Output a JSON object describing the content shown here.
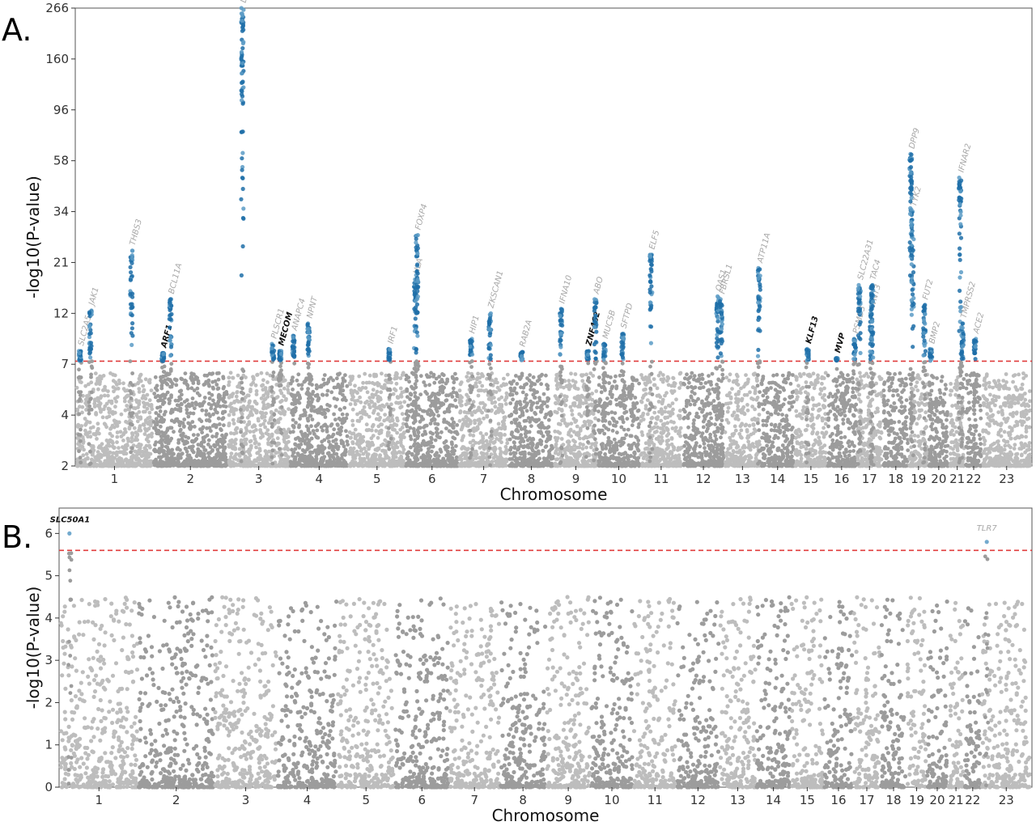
{
  "figure": {
    "panels": [
      "A.",
      "B."
    ]
  },
  "colors": {
    "chrom_odd": "#bdbdbd",
    "chrom_even": "#9c9c9c",
    "hit": "#1f6fa8",
    "hit_light": "#5b9bc6",
    "threshold": "#e03c3c",
    "known_label": "#a8a8a8",
    "novel_label": "#111111"
  },
  "chart_data": [
    {
      "type": "scatter",
      "subtype": "manhattan",
      "panel": "A.",
      "xlabel": "Chromosome",
      "ylabel": "-log10(P-value)",
      "scale": "compressed (nonlinear) -log10 axis",
      "ylim": [
        2,
        266
      ],
      "yticks": [
        2,
        4,
        7,
        12,
        21,
        34,
        58,
        96,
        160,
        266
      ],
      "threshold": 7.3,
      "chromosomes": [
        "1",
        "2",
        "3",
        "4",
        "5",
        "6",
        "7",
        "8",
        "9",
        "10",
        "11",
        "12",
        "13",
        "14",
        "15",
        "16",
        "17",
        "18",
        "19",
        "20",
        "21",
        "22",
        "23"
      ],
      "chrom_sizes": [
        248,
        242,
        198,
        190,
        181,
        171,
        159,
        145,
        138,
        134,
        135,
        133,
        114,
        107,
        102,
        90,
        83,
        80,
        59,
        64,
        47,
        51,
        156
      ],
      "background_max": 6.5,
      "grid": false,
      "peaks": [
        {
          "chr": 1,
          "pos": 10,
          "p": 8.3,
          "gene": "SLC2A5",
          "novel": false
        },
        {
          "chr": 1,
          "pos": 45,
          "p": 12.5,
          "gene": "JAK1",
          "novel": false
        },
        {
          "chr": 1,
          "pos": 180,
          "p": 24,
          "gene": "THBS3",
          "novel": false
        },
        {
          "chr": 2,
          "pos": 30,
          "p": 8.1,
          "gene": "ARF1",
          "novel": true
        },
        {
          "chr": 2,
          "pos": 55,
          "p": 14.5,
          "gene": "BCL11A",
          "novel": false
        },
        {
          "chr": 3,
          "pos": 45,
          "p": 266,
          "gene": "LZTFL1",
          "novel": false
        },
        {
          "chr": 3,
          "pos": 146,
          "p": 9.0,
          "gene": "PLSCR1",
          "novel": false
        },
        {
          "chr": 3,
          "pos": 170,
          "p": 8.3,
          "gene": "MECOM",
          "novel": true
        },
        {
          "chr": 4,
          "pos": 10,
          "p": 9.8,
          "gene": "ANAPC4",
          "novel": false
        },
        {
          "chr": 4,
          "pos": 60,
          "p": 11,
          "gene": "NPNT",
          "novel": false
        },
        {
          "chr": 5,
          "pos": 132,
          "p": 8.5,
          "gene": "IRF1",
          "novel": false
        },
        {
          "chr": 6,
          "pos": 30,
          "p": 18,
          "gene": "HLA",
          "novel": false
        },
        {
          "chr": 6,
          "pos": 36,
          "p": 28,
          "gene": "FOXP4",
          "novel": false
        },
        {
          "chr": 7,
          "pos": 38,
          "p": 9.5,
          "gene": "HIP1",
          "novel": false
        },
        {
          "chr": 7,
          "pos": 100,
          "p": 12,
          "gene": "ZKSCAN1",
          "novel": false
        },
        {
          "chr": 8,
          "pos": 40,
          "p": 8.2,
          "gene": "RAB2A",
          "novel": false
        },
        {
          "chr": 9,
          "pos": 20,
          "p": 12.8,
          "gene": "IFNA10",
          "novel": false
        },
        {
          "chr": 9,
          "pos": 108,
          "p": 8.3,
          "gene": "ZNF462",
          "novel": true
        },
        {
          "chr": 9,
          "pos": 133,
          "p": 14.5,
          "gene": "ABO",
          "novel": false
        },
        {
          "chr": 10,
          "pos": 80,
          "p": 10,
          "gene": "SFTPD",
          "novel": false
        },
        {
          "chr": 10,
          "pos": 20,
          "p": 9.0,
          "gene": "MUC5B",
          "novel": false
        },
        {
          "chr": 11,
          "pos": 34,
          "p": 23,
          "gene": "ELF5",
          "novel": false
        },
        {
          "chr": 12,
          "pos": 113,
          "p": 15,
          "gene": "OAS1",
          "novel": false
        },
        {
          "chr": 12,
          "pos": 125,
          "p": 14.5,
          "gene": "FBRSL1",
          "novel": false
        },
        {
          "chr": 13,
          "pos": 112,
          "p": 20,
          "gene": "ATP11A",
          "novel": false
        },
        {
          "chr": 15,
          "pos": 40,
          "p": 8.5,
          "gene": "KLF13",
          "novel": true
        },
        {
          "chr": 16,
          "pos": 29,
          "p": 7.6,
          "gene": "MVP",
          "novel": true
        },
        {
          "chr": 16,
          "pos": 88,
          "p": 9.5,
          "gene": "PSMD3",
          "novel": false
        },
        {
          "chr": 17,
          "pos": 47,
          "p": 12,
          "gene": "WNT3",
          "novel": false
        },
        {
          "chr": 17,
          "pos": 50,
          "p": 17,
          "gene": "TAC4",
          "novel": false
        },
        {
          "chr": 17,
          "pos": 8,
          "p": 17,
          "gene": "SLC22A31",
          "novel": false
        },
        {
          "chr": 19,
          "pos": 10,
          "p": 34,
          "gene": "TYK2",
          "novel": false
        },
        {
          "chr": 19,
          "pos": 4,
          "p": 63,
          "gene": "DPP9",
          "novel": false
        },
        {
          "chr": 19,
          "pos": 49,
          "p": 13.5,
          "gene": "FUT2",
          "novel": false
        },
        {
          "chr": 20,
          "pos": 6,
          "p": 8.5,
          "gene": "BMP2",
          "novel": false
        },
        {
          "chr": 21,
          "pos": 33,
          "p": 50,
          "gene": "IFNAR2",
          "novel": false
        },
        {
          "chr": 21,
          "pos": 41,
          "p": 11,
          "gene": "TMPRSS2",
          "novel": false
        },
        {
          "chr": 22,
          "pos": 30,
          "p": 9.5,
          "gene": "ACE2",
          "novel": false
        }
      ]
    },
    {
      "type": "scatter",
      "subtype": "manhattan",
      "panel": "B.",
      "xlabel": "Chromosome",
      "ylabel": "-log10(P-value)",
      "scale": "compressed (nonlinear) -log10 axis",
      "ylim": [
        0,
        7
      ],
      "yticks": [
        0,
        1,
        2,
        3,
        4,
        5,
        6
      ],
      "threshold": 5.6,
      "chromosomes": [
        "1",
        "2",
        "3",
        "4",
        "5",
        "6",
        "7",
        "8",
        "9",
        "10",
        "11",
        "12",
        "13",
        "14",
        "15",
        "16",
        "17",
        "18",
        "19",
        "20",
        "21",
        "22",
        "23"
      ],
      "chrom_sizes": [
        248,
        242,
        198,
        190,
        181,
        171,
        159,
        145,
        138,
        134,
        135,
        133,
        114,
        107,
        102,
        90,
        83,
        80,
        59,
        64,
        47,
        51,
        156
      ],
      "background_max": 4.5,
      "grid": false,
      "peaks": [
        {
          "chr": 1,
          "pos": 30,
          "p": 6.0,
          "gene": "SLC50A1",
          "novel": true
        },
        {
          "chr": 23,
          "pos": 15,
          "p": 5.8,
          "gene": "TLR7",
          "novel": false
        }
      ]
    }
  ]
}
